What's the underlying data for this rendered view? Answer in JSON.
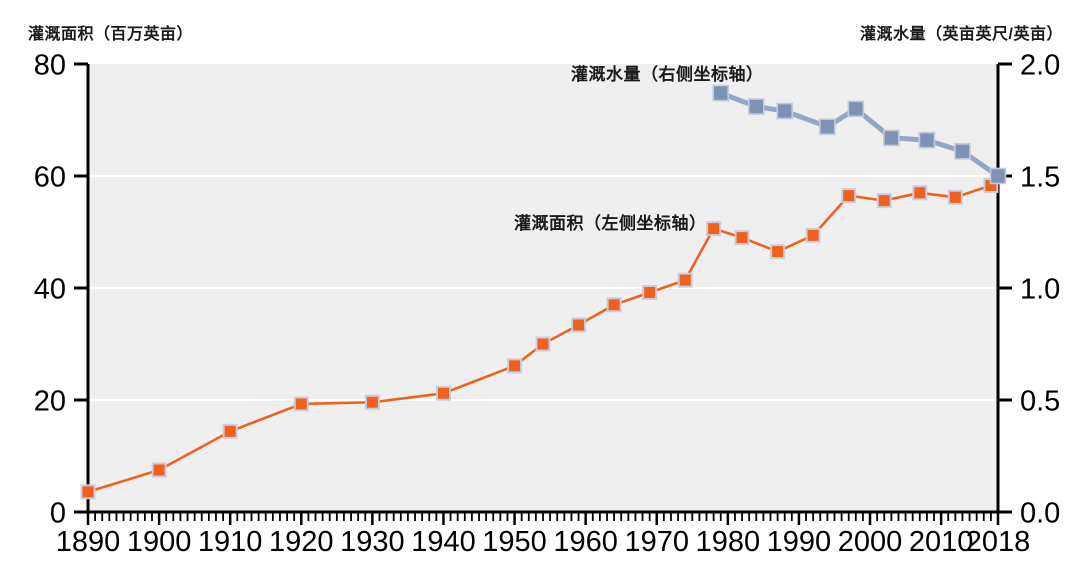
{
  "chart_data": {
    "type": "line",
    "title": "",
    "plot_background": "#efefef",
    "axis_color": "#000000",
    "grid": {
      "show": true,
      "color": "#ffffff",
      "at_left_axis_values": [
        20,
        40,
        60
      ]
    },
    "x_axis": {
      "min": 1890,
      "max": 2018,
      "tick_label_years": [
        1890,
        1900,
        1910,
        1920,
        1930,
        1940,
        1950,
        1960,
        1970,
        1980,
        1990,
        2000,
        2010,
        2018
      ],
      "minor_tick_interval_years": 1
    },
    "left_axis": {
      "title": "灌溉面积（百万英亩）",
      "min": 0,
      "max": 80,
      "ticks": [
        0,
        20,
        40,
        60,
        80
      ],
      "tick_labels": [
        "0",
        "20",
        "40",
        "60",
        "80"
      ]
    },
    "right_axis": {
      "title": "灌溉水量（英亩英尺/英亩）",
      "min": 0.0,
      "max": 2.0,
      "ticks": [
        0,
        0.5,
        1,
        1.5,
        2
      ],
      "tick_labels": [
        "0.0",
        "0.5",
        "1.0",
        "1.5",
        "2.0"
      ]
    },
    "series": [
      {
        "name": "灌溉面积（左侧坐标轴）",
        "axis": "left",
        "marker": "square",
        "line_color": "#f2611c",
        "marker_color": "#f2611c",
        "marker_border": "#c9cde2",
        "points": [
          [
            1890,
            3.6
          ],
          [
            1900,
            7.5
          ],
          [
            1910,
            14.4
          ],
          [
            1920,
            19.3
          ],
          [
            1930,
            19.6
          ],
          [
            1940,
            21.2
          ],
          [
            1950,
            26.1
          ],
          [
            1954,
            30.0
          ],
          [
            1959,
            33.4
          ],
          [
            1964,
            37.0
          ],
          [
            1969,
            39.2
          ],
          [
            1974,
            41.4
          ],
          [
            1978,
            50.6
          ],
          [
            1982,
            49.0
          ],
          [
            1987,
            46.5
          ],
          [
            1992,
            49.4
          ],
          [
            1997,
            56.5
          ],
          [
            2002,
            55.6
          ],
          [
            2007,
            57.0
          ],
          [
            2012,
            56.2
          ],
          [
            2017,
            58.3
          ]
        ]
      },
      {
        "name": "灌溉水量（右侧坐标轴）",
        "axis": "right",
        "marker": "square",
        "line_color": "#94a6c2",
        "marker_color": "#7e93b3",
        "marker_border": "#c3cadb",
        "points": [
          [
            1979,
            1.87
          ],
          [
            1984,
            1.81
          ],
          [
            1988,
            1.79
          ],
          [
            1994,
            1.72
          ],
          [
            1998,
            1.8
          ],
          [
            2003,
            1.67
          ],
          [
            2008,
            1.66
          ],
          [
            2013,
            1.61
          ],
          [
            2018,
            1.5
          ]
        ]
      }
    ]
  }
}
